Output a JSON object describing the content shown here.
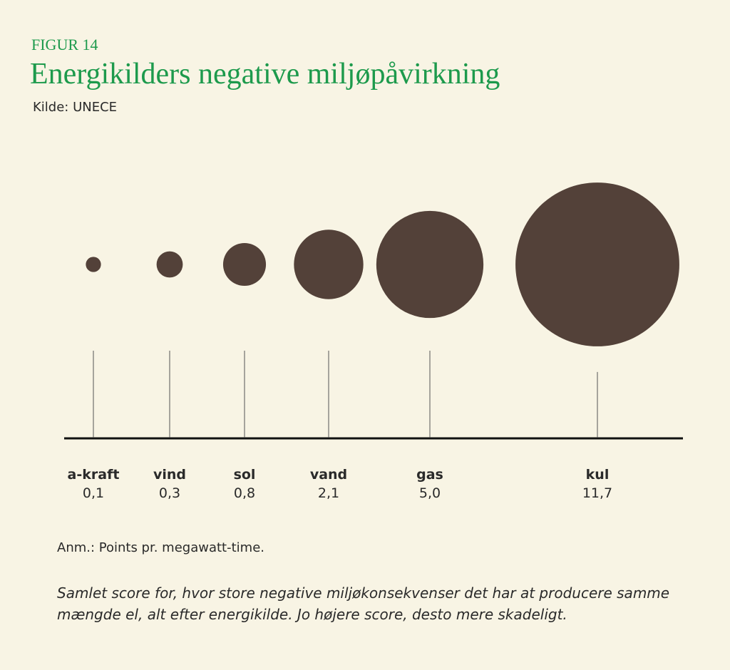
{
  "chart_data": {
    "type": "bubble",
    "subtitle": "FIGUR 14",
    "title": "Energikilders negative miljøpåvirkning",
    "source": "Kilde: UNECE",
    "categories": [
      "a-kraft",
      "vind",
      "sol",
      "vand",
      "gas",
      "kul"
    ],
    "values": [
      0.1,
      0.3,
      0.8,
      2.1,
      5.0,
      11.7
    ],
    "value_labels": [
      "0,1",
      "0,3",
      "0,8",
      "2,1",
      "5,0",
      "11,7"
    ],
    "color": "#534139",
    "note": "Anm.: Points pr. megawatt-time.",
    "description": [
      "Samlet score for, hvor store negative miljøkonsekvenser det har at producere samme",
      "mængde el, alt efter energikilde. Jo højere score, desto mere skadeligt."
    ]
  }
}
